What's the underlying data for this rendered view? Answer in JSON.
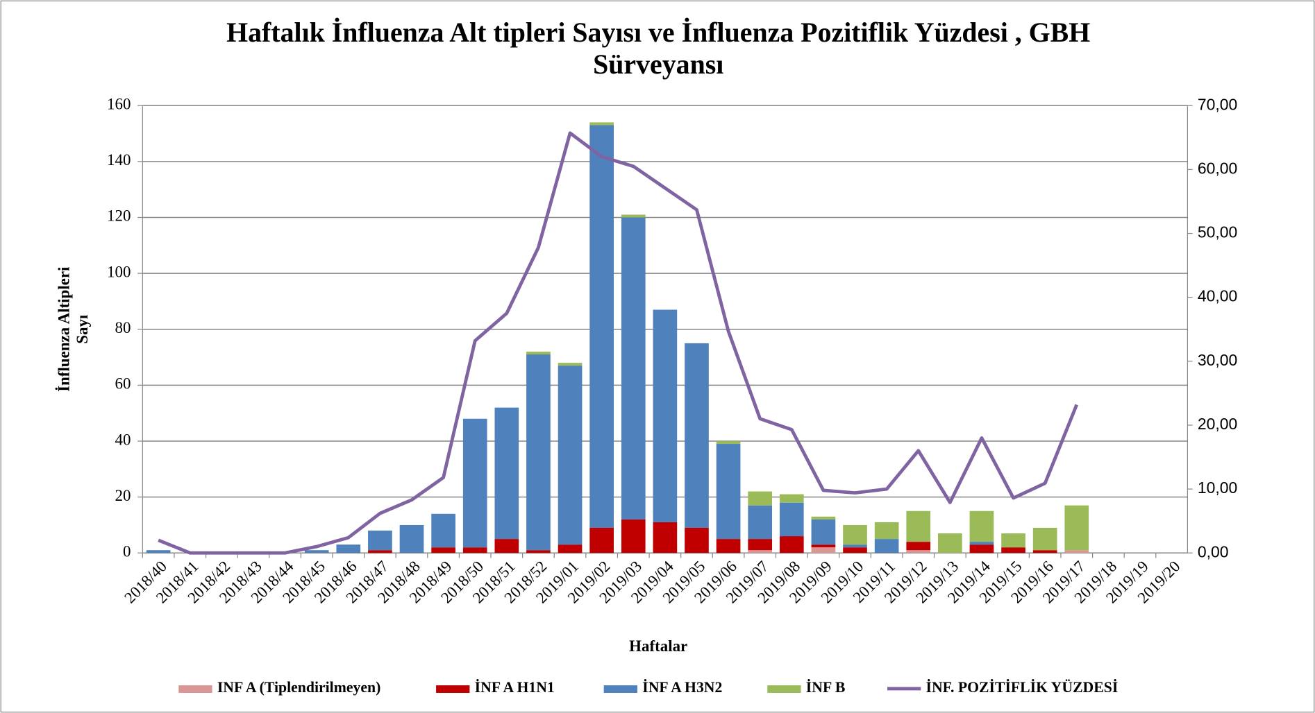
{
  "chart_data": {
    "type": "bar",
    "stacked": true,
    "title": [
      "Haftalık İnfluenza Alt tipleri Sayısı ve İnfluenza Pozitiflik Yüzdesi , GBH",
      "Sürveyansı"
    ],
    "x_label": "Haftalar",
    "y_label": [
      "İnfluenza Altipleri",
      "Sayı"
    ],
    "categories": [
      "2018/40",
      "2018/41",
      "2018/42",
      "2018/43",
      "2018/44",
      "2018/45",
      "2018/46",
      "2018/47",
      "2018/48",
      "2018/49",
      "2018/50",
      "2018/51",
      "2018/52",
      "2019/01",
      "2019/02",
      "2019/03",
      "2019/04",
      "2019/05",
      "2019/06",
      "2019/07",
      "2019/08",
      "2019/09",
      "2019/10",
      "2019/11",
      "2019/12",
      "2019/13",
      "2019/14",
      "2019/15",
      "2019/16",
      "2019/17",
      "2019/18",
      "2019/19",
      "2019/20"
    ],
    "series": [
      {
        "name": "INF A (Tiplendirilmeyen)",
        "color": "#d99694",
        "type": "bar",
        "values": [
          0,
          0,
          0,
          0,
          0,
          0,
          0,
          0,
          0,
          0,
          0,
          0,
          0,
          0,
          0,
          0,
          0,
          0,
          0,
          1,
          0,
          2,
          0,
          0,
          1,
          0,
          0,
          0,
          0,
          1,
          null,
          null,
          null
        ]
      },
      {
        "name": "İNF A H1N1",
        "color": "#c00000",
        "type": "bar",
        "values": [
          0,
          0,
          0,
          0,
          0,
          0,
          0,
          1,
          0,
          2,
          2,
          5,
          1,
          3,
          9,
          12,
          11,
          9,
          5,
          4,
          6,
          1,
          2,
          0,
          3,
          0,
          3,
          2,
          1,
          0,
          null,
          null,
          null
        ]
      },
      {
        "name": "İNF A H3N2",
        "color": "#4f81bd",
        "type": "bar",
        "values": [
          1,
          0,
          0,
          0,
          0,
          1,
          3,
          7,
          10,
          12,
          46,
          47,
          70,
          64,
          144,
          108,
          76,
          66,
          34,
          12,
          12,
          9,
          1,
          5,
          0,
          0,
          1,
          0,
          0,
          0,
          null,
          null,
          null
        ]
      },
      {
        "name": "İNF B",
        "color": "#9bbb59",
        "type": "bar",
        "values": [
          0,
          0,
          0,
          0,
          0,
          0,
          0,
          0,
          0,
          0,
          0,
          0,
          1,
          1,
          1,
          1,
          0,
          0,
          1,
          5,
          3,
          1,
          7,
          6,
          11,
          7,
          11,
          5,
          8,
          16,
          null,
          null,
          null
        ]
      },
      {
        "name": "İNF. POZİTİFLİK YÜZDESİ",
        "color": "#8064a2",
        "type": "line",
        "axis": "y2",
        "values": [
          2.0,
          0,
          0,
          0,
          0,
          1.0,
          2.4,
          6.2,
          8.3,
          11.8,
          33.2,
          37.5,
          47.8,
          65.7,
          62.0,
          60.5,
          57.1,
          53.7,
          34.7,
          21.0,
          19.3,
          9.8,
          9.4,
          10.0,
          16.0,
          7.9,
          18.0,
          8.6,
          10.9,
          23.2,
          null,
          null,
          null
        ]
      }
    ],
    "ylim": [
      0,
      160
    ],
    "yticks": [
      0,
      20,
      40,
      60,
      80,
      100,
      120,
      140,
      160
    ],
    "y2lim": [
      0,
      70
    ],
    "y2ticks": [
      {
        "value": 0,
        "label": "0,00"
      },
      {
        "value": 10,
        "label": "10,00"
      },
      {
        "value": 20,
        "label": "20,00"
      },
      {
        "value": 30,
        "label": "30,00"
      },
      {
        "value": 40,
        "label": "40,00"
      },
      {
        "value": 50,
        "label": "50,00"
      },
      {
        "value": 60,
        "label": "60,00"
      },
      {
        "value": 70,
        "label": "70,00"
      }
    ],
    "grid": true,
    "legend": "bottom"
  }
}
